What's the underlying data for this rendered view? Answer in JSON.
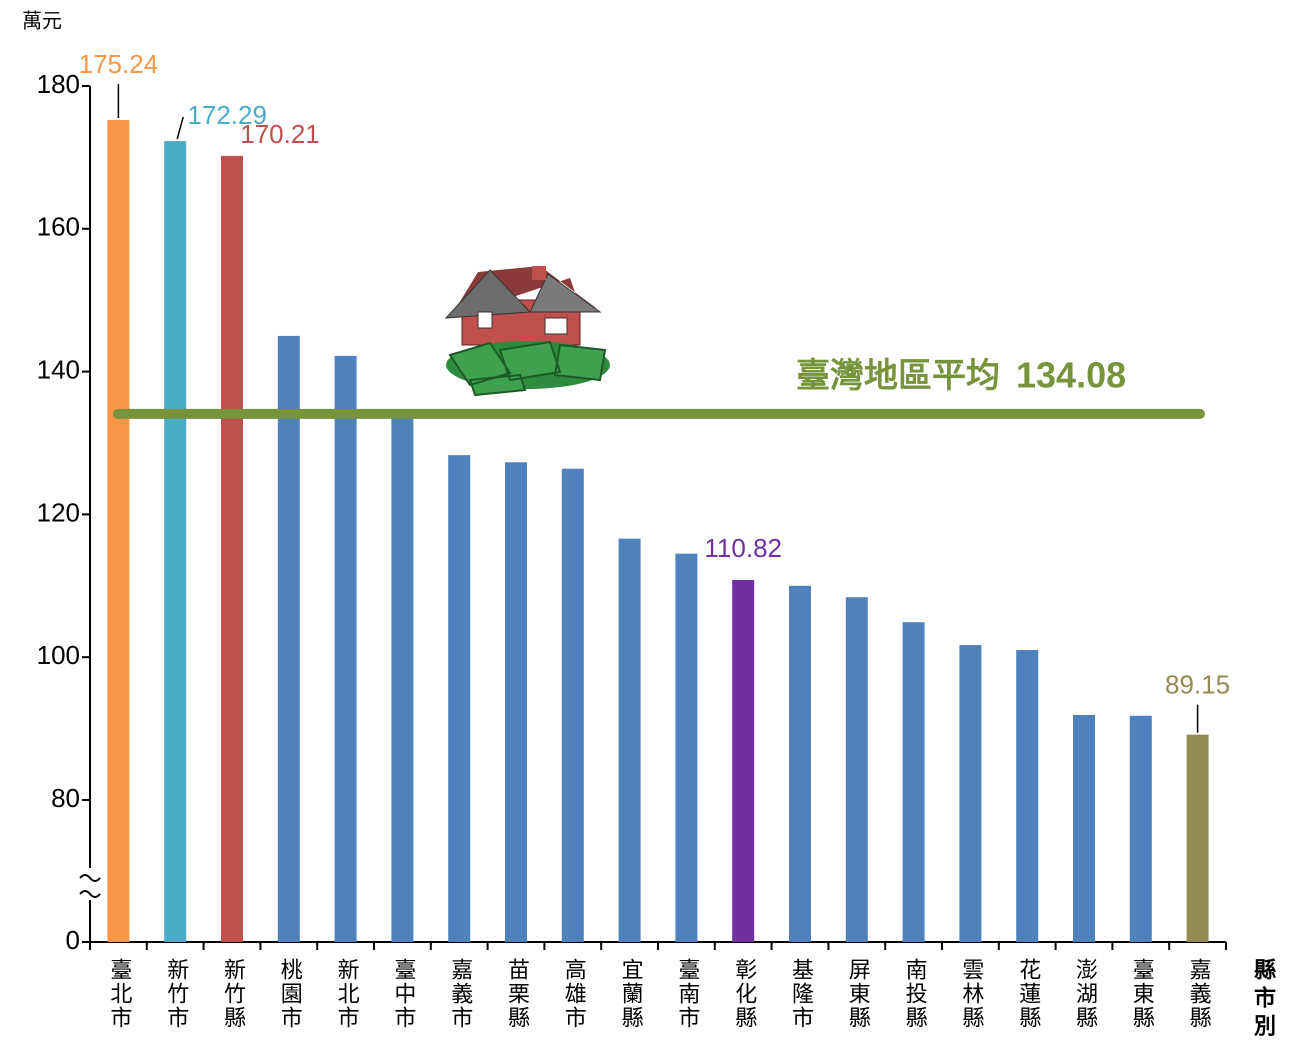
{
  "chart_data": {
    "type": "bar",
    "y_label": "萬元",
    "x_label": "縣市別",
    "categories": [
      "臺北市",
      "新竹市",
      "新竹縣",
      "桃園市",
      "新北市",
      "臺中市",
      "嘉義市",
      "苗栗縣",
      "高雄市",
      "宜蘭縣",
      "臺南市",
      "彰化縣",
      "基隆市",
      "屏東縣",
      "南投縣",
      "雲林縣",
      "花蓮縣",
      "澎湖縣",
      "臺東縣",
      "嘉義縣"
    ],
    "values": [
      175.24,
      172.29,
      170.21,
      145.0,
      142.2,
      133.9,
      128.3,
      127.3,
      126.4,
      116.6,
      114.5,
      110.82,
      110.0,
      108.4,
      104.9,
      101.7,
      101.0,
      91.9,
      91.8,
      89.15
    ],
    "colors": [
      "#f79646",
      "#4bacc6",
      "#c0504d",
      "#4f81bd",
      "#4f81bd",
      "#4f81bd",
      "#4f81bd",
      "#4f81bd",
      "#4f81bd",
      "#4f81bd",
      "#4f81bd",
      "#7030a0",
      "#4f81bd",
      "#4f81bd",
      "#4f81bd",
      "#4f81bd",
      "#4f81bd",
      "#4f81bd",
      "#4f81bd",
      "#948a54"
    ],
    "show_labels": [
      true,
      true,
      true,
      false,
      false,
      false,
      false,
      false,
      false,
      false,
      false,
      true,
      false,
      false,
      false,
      false,
      false,
      false,
      false,
      true
    ],
    "ylim": [
      0,
      180
    ],
    "yticks": [
      0,
      80,
      100,
      120,
      140,
      160,
      180
    ],
    "y_break": true,
    "average": {
      "label": "臺灣地區平均",
      "value": 134.08,
      "color": "#77933c"
    }
  }
}
